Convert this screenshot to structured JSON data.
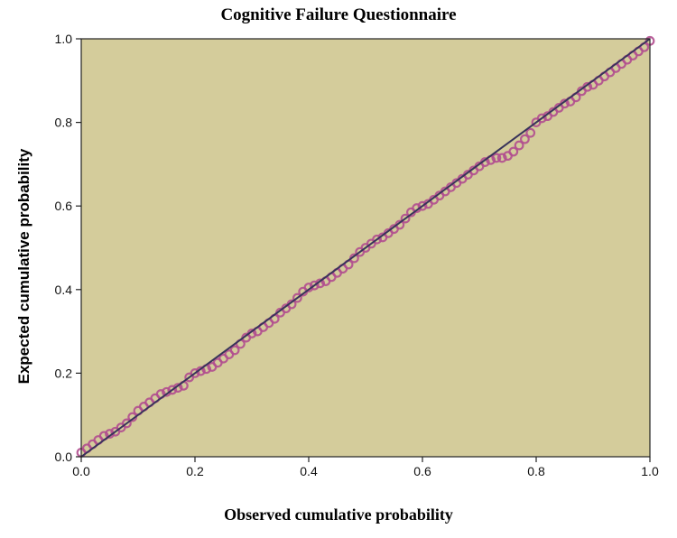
{
  "chart_data": {
    "type": "scatter",
    "title": "Cognitive Failure Questionnaire",
    "xlabel": "Observed cumulative probability",
    "ylabel": "Expected cumulative probability",
    "xlim": [
      0.0,
      1.0
    ],
    "ylim": [
      0.0,
      1.0
    ],
    "xticks": [
      "0.0",
      "0.2",
      "0.4",
      "0.6",
      "0.8",
      "1.0"
    ],
    "yticks": [
      "0.0",
      "0.2",
      "0.4",
      "0.6",
      "0.8",
      "1.0"
    ],
    "grid": false,
    "background_color": "#d4cc9b",
    "point_color": "#b14e8f",
    "line_color": "#38335a",
    "reference_line": {
      "x": [
        0.0,
        1.0
      ],
      "y": [
        0.0,
        1.0
      ]
    },
    "series": [
      {
        "x": [
          0.0,
          0.01,
          0.02,
          0.03,
          0.04,
          0.05,
          0.06,
          0.07,
          0.08,
          0.09,
          0.1,
          0.11,
          0.12,
          0.13,
          0.14,
          0.15,
          0.16,
          0.17,
          0.18,
          0.19,
          0.2,
          0.21,
          0.22,
          0.23,
          0.24,
          0.25,
          0.26,
          0.27,
          0.28,
          0.29,
          0.3,
          0.31,
          0.32,
          0.33,
          0.34,
          0.35,
          0.36,
          0.37,
          0.38,
          0.39,
          0.4,
          0.41,
          0.42,
          0.43,
          0.44,
          0.45,
          0.46,
          0.47,
          0.48,
          0.49,
          0.5,
          0.51,
          0.52,
          0.53,
          0.54,
          0.55,
          0.56,
          0.57,
          0.58,
          0.59,
          0.6,
          0.61,
          0.62,
          0.63,
          0.64,
          0.65,
          0.66,
          0.67,
          0.68,
          0.69,
          0.7,
          0.71,
          0.72,
          0.73,
          0.74,
          0.75,
          0.76,
          0.77,
          0.78,
          0.79,
          0.8,
          0.81,
          0.82,
          0.83,
          0.84,
          0.85,
          0.86,
          0.87,
          0.88,
          0.89,
          0.9,
          0.91,
          0.92,
          0.93,
          0.94,
          0.95,
          0.96,
          0.97,
          0.98,
          0.99,
          1.0
        ],
        "y": [
          0.01,
          0.02,
          0.03,
          0.04,
          0.05,
          0.055,
          0.06,
          0.07,
          0.08,
          0.095,
          0.11,
          0.12,
          0.13,
          0.14,
          0.15,
          0.155,
          0.16,
          0.165,
          0.17,
          0.19,
          0.2,
          0.205,
          0.21,
          0.215,
          0.225,
          0.235,
          0.245,
          0.255,
          0.27,
          0.285,
          0.295,
          0.3,
          0.31,
          0.32,
          0.33,
          0.345,
          0.355,
          0.365,
          0.38,
          0.395,
          0.405,
          0.41,
          0.415,
          0.42,
          0.43,
          0.44,
          0.45,
          0.46,
          0.475,
          0.49,
          0.5,
          0.51,
          0.52,
          0.525,
          0.535,
          0.545,
          0.555,
          0.57,
          0.585,
          0.595,
          0.6,
          0.605,
          0.615,
          0.625,
          0.635,
          0.645,
          0.655,
          0.665,
          0.675,
          0.685,
          0.695,
          0.705,
          0.71,
          0.715,
          0.715,
          0.72,
          0.73,
          0.745,
          0.76,
          0.775,
          0.8,
          0.81,
          0.815,
          0.825,
          0.835,
          0.845,
          0.85,
          0.86,
          0.875,
          0.885,
          0.89,
          0.9,
          0.91,
          0.92,
          0.93,
          0.94,
          0.95,
          0.96,
          0.97,
          0.98,
          0.995
        ]
      }
    ]
  }
}
